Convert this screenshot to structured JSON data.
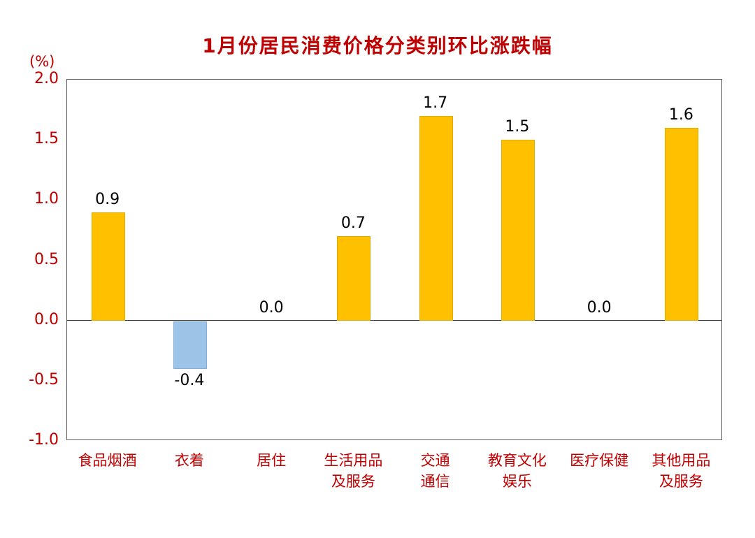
{
  "chart_data": {
    "type": "bar",
    "title": "1月份居民消费价格分类别环比涨跌幅",
    "unit_label": "(%)",
    "categories": [
      "食品烟酒",
      "衣着",
      "居住",
      "生活用品及服务",
      "交通通信",
      "教育文化娱乐",
      "医疗保健",
      "其他用品及服务"
    ],
    "category_lines": [
      [
        "食品烟酒"
      ],
      [
        "衣着"
      ],
      [
        "居住"
      ],
      [
        "生活用品",
        "及服务"
      ],
      [
        "交通",
        "通信"
      ],
      [
        "教育文化",
        "娱乐"
      ],
      [
        "医疗保健"
      ],
      [
        "其他用品",
        "及服务"
      ]
    ],
    "values": [
      0.9,
      -0.4,
      0.0,
      0.7,
      1.7,
      1.5,
      0.0,
      1.6
    ],
    "value_labels": [
      "0.9",
      "-0.4",
      "0.0",
      "0.7",
      "1.7",
      "1.5",
      "0.0",
      "1.6"
    ],
    "ylim": [
      -1.0,
      2.0
    ],
    "yticks": [
      "2.0",
      "1.5",
      "1.0",
      "0.5",
      "0.0",
      "-0.5",
      "-1.0"
    ],
    "xlabel": "",
    "ylabel": "(%)",
    "grid": false,
    "legend": false,
    "colors": {
      "positive_bar": "#FFC000",
      "positive_bar_border": "#E2A900",
      "negative_bar": "#9DC3E6",
      "negative_bar_border": "#82AED8",
      "title_text": "#C00000",
      "axis_text": "#C00000",
      "value_text": "#000000",
      "plot_border": "#595959",
      "zero_line": "#333333"
    }
  }
}
